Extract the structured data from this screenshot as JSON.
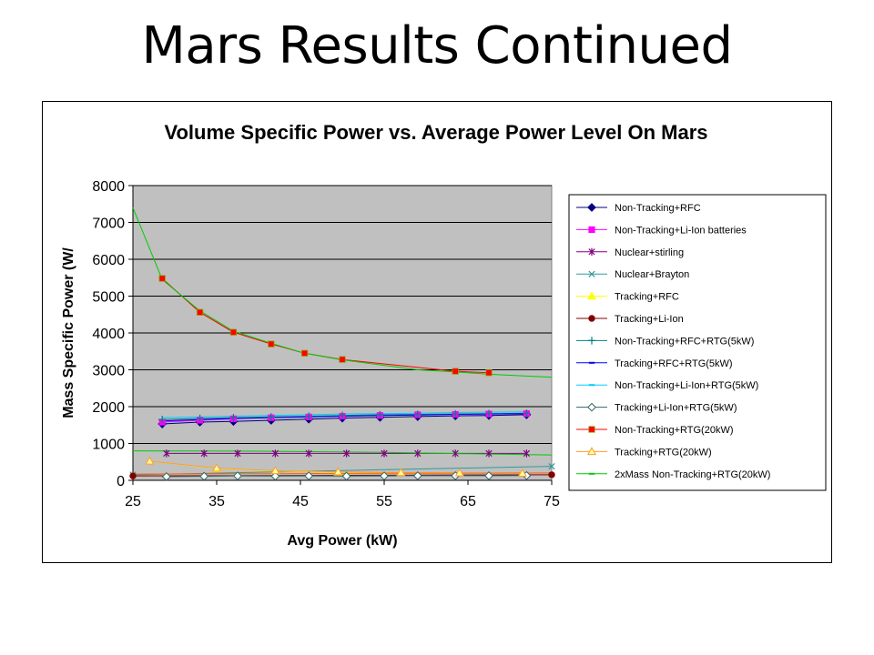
{
  "slide": {
    "title": "Mars Results Continued"
  },
  "chart_data": {
    "type": "line",
    "title": "Volume Specific Power vs. Average Power Level On Mars",
    "xlabel": "Avg Power (kW)",
    "ylabel": "Mass Specific Power (W/",
    "xlim": [
      25,
      75
    ],
    "ylim": [
      0,
      8000
    ],
    "xticks": [
      25,
      35,
      45,
      55,
      65,
      75
    ],
    "yticks": [
      0,
      1000,
      2000,
      3000,
      4000,
      5000,
      6000,
      7000,
      8000
    ],
    "grid": "horizontal",
    "legend_position": "right",
    "colors": {
      "plot_background": "#c0c0c0",
      "gridline": "#000000"
    },
    "series": [
      {
        "name": "Non-Tracking+RFC",
        "color": "#000080",
        "marker": "diamond-filled",
        "x": [
          28.5,
          33,
          37,
          41.5,
          46,
          50,
          54.5,
          59,
          63.5,
          67.5,
          72
        ],
        "y": [
          1530,
          1580,
          1600,
          1630,
          1660,
          1690,
          1710,
          1730,
          1750,
          1760,
          1780
        ]
      },
      {
        "name": "Non-Tracking+Li-Ion batteries",
        "color": "#ff00ff",
        "marker": "square",
        "x": [
          28.5,
          33,
          37,
          41.5,
          46,
          50,
          54.5,
          59,
          63.5,
          67.5,
          72
        ],
        "y": [
          1580,
          1630,
          1670,
          1700,
          1720,
          1740,
          1760,
          1780,
          1790,
          1800,
          1810
        ]
      },
      {
        "name": "Nuclear+stirling",
        "color": "#800080",
        "marker": "asterisk",
        "x": [
          29,
          33.5,
          37.5,
          42,
          46,
          50.5,
          55,
          59,
          63.5,
          67.5,
          72
        ],
        "y": [
          730,
          730,
          730,
          730,
          730,
          730,
          730,
          730,
          730,
          730,
          730
        ]
      },
      {
        "name": "Nuclear+Brayton",
        "color": "#339999",
        "marker": "x",
        "x": [
          25,
          75
        ],
        "y": [
          150,
          380
        ]
      },
      {
        "name": "Tracking+RFC",
        "color": "#ffff00",
        "marker": "triangle-filled",
        "x": [
          27,
          35,
          42,
          49.5,
          57,
          64,
          71.5
        ],
        "y": [
          520,
          320,
          250,
          220,
          210,
          200,
          190
        ]
      },
      {
        "name": "Tracking+Li-Ion",
        "color": "#800000",
        "marker": "circle-filled",
        "x": [
          25,
          75
        ],
        "y": [
          120,
          150
        ]
      },
      {
        "name": "Non-Tracking+RFC+RTG(5kW)",
        "color": "#008080",
        "marker": "plus",
        "x": [
          28.5,
          33,
          37,
          41.5,
          46,
          50,
          54.5,
          59,
          63.5,
          67.5,
          72
        ],
        "y": [
          1650,
          1680,
          1700,
          1720,
          1740,
          1760,
          1780,
          1790,
          1800,
          1810,
          1820
        ]
      },
      {
        "name": "Tracking+RFC+RTG(5kW)",
        "color": "#0000ff",
        "marker": "dash",
        "x": [
          28.5,
          33,
          37,
          41.5,
          46,
          50,
          54.5,
          59,
          63.5,
          67.5,
          72
        ],
        "y": [
          1610,
          1650,
          1680,
          1700,
          1720,
          1740,
          1760,
          1770,
          1790,
          1800,
          1810
        ]
      },
      {
        "name": "Non-Tracking+Li-Ion+RTG(5kW)",
        "color": "#00ccff",
        "marker": "dash",
        "x": [
          28.5,
          33,
          37,
          41.5,
          46,
          50,
          54.5,
          59,
          63.5,
          67.5,
          72
        ],
        "y": [
          1700,
          1720,
          1740,
          1760,
          1780,
          1800,
          1810,
          1820,
          1840,
          1850,
          1860
        ]
      },
      {
        "name": "Tracking+Li-Ion+RTG(5kW)",
        "color": "#336666",
        "marker": "diamond-open",
        "x": [
          29,
          33.5,
          37.5,
          42,
          46,
          50.5,
          55,
          59,
          63.5,
          67.5,
          72
        ],
        "y": [
          100,
          110,
          120,
          115,
          120,
          115,
          120,
          125,
          125,
          125,
          130
        ]
      },
      {
        "name": "Non-Tracking+RTG(20kW)",
        "color": "#ff0000",
        "marker": "square",
        "x": [
          28.5,
          33,
          37,
          41.5,
          45.5,
          50,
          63.5,
          67.5
        ],
        "y": [
          5480,
          4560,
          4020,
          3700,
          3450,
          3280,
          2960,
          2920
        ]
      },
      {
        "name": "Tracking+RTG(20kW)",
        "color": "#ff9933",
        "marker": "triangle-open",
        "x": [
          27,
          35,
          42,
          49.5,
          57,
          64,
          71.5
        ],
        "y": [
          520,
          330,
          260,
          230,
          210,
          200,
          190
        ]
      },
      {
        "name": "2xMass Non-Tracking+RTG(20kW)",
        "color": "#00cc00",
        "marker": "dash",
        "x": [
          25,
          28.5,
          33,
          37,
          41.5,
          45.5,
          50,
          55,
          59,
          63.5,
          67.5,
          72,
          75
        ],
        "y": [
          7400,
          5450,
          4600,
          4050,
          3720,
          3450,
          3270,
          3120,
          3000,
          2940,
          2880,
          2830,
          2800
        ]
      },
      {
        "name": "",
        "color": "#00cc00",
        "marker": "none",
        "x": [
          25,
          40,
          55,
          65,
          75
        ],
        "y": [
          800,
          790,
          760,
          720,
          690
        ]
      },
      {
        "name": "",
        "color": "#ff6600",
        "marker": "none",
        "x": [
          25,
          40,
          55,
          65,
          75
        ],
        "y": [
          170,
          180,
          190,
          195,
          200
        ]
      }
    ]
  }
}
